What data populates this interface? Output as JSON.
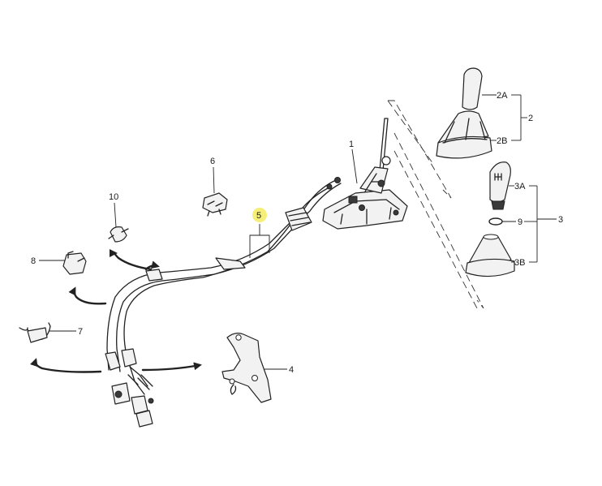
{
  "callouts": {
    "c1": "1",
    "c2": "2",
    "c2A": "2A",
    "c2B": "2B",
    "c3": "3",
    "c3A": "3A",
    "c3B": "3B",
    "c4": "4",
    "c5": "5",
    "c6": "6",
    "c7": "7",
    "c8": "8",
    "c9": "9",
    "c10": "10"
  },
  "highlight_color": "#f5ef7a",
  "line_color": "#222222"
}
